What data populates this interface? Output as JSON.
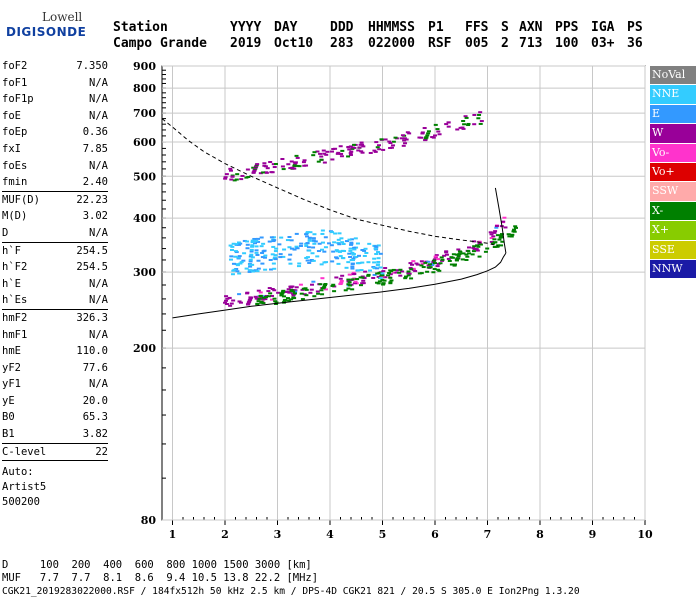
{
  "logo": {
    "line1": "Lowell",
    "line2": "DIGISONDE"
  },
  "header": {
    "row1": [
      {
        "text": "Station"
      },
      {
        "text": "YYYY"
      },
      {
        "text": "DAY"
      },
      {
        "text": "DDD"
      },
      {
        "text": "HHMMSS"
      },
      {
        "text": "P1"
      },
      {
        "text": "FFS"
      },
      {
        "text": "S"
      },
      {
        "text": "AXN"
      },
      {
        "text": "PPS"
      },
      {
        "text": "IGA"
      },
      {
        "text": "PS"
      }
    ],
    "row2": [
      {
        "text": "Campo Grande"
      },
      {
        "text": "2019"
      },
      {
        "text": "Oct10"
      },
      {
        "text": "283"
      },
      {
        "text": "022000"
      },
      {
        "text": "RSF"
      },
      {
        "text": "005"
      },
      {
        "text": "2"
      },
      {
        "text": "713"
      },
      {
        "text": "100"
      },
      {
        "text": "03+"
      },
      {
        "text": "36"
      }
    ]
  },
  "params": {
    "group1": [
      {
        "name": "foF2",
        "value": "7.350"
      },
      {
        "name": "foF1",
        "value": "N/A"
      },
      {
        "name": "foF1p",
        "value": "N/A"
      },
      {
        "name": "foE",
        "value": "N/A"
      },
      {
        "name": "foEp",
        "value": "0.36"
      },
      {
        "name": "fxI",
        "value": "7.85"
      },
      {
        "name": "foEs",
        "value": "N/A"
      },
      {
        "name": "fmin",
        "value": "2.40"
      }
    ],
    "group2": [
      {
        "name": "MUF(D)",
        "value": "22.23"
      },
      {
        "name": "M(D)",
        "value": "3.02"
      },
      {
        "name": "D",
        "value": "N/A"
      }
    ],
    "group3": [
      {
        "name": "h`F",
        "value": "254.5"
      },
      {
        "name": "h`F2",
        "value": "254.5"
      },
      {
        "name": "h`E",
        "value": "N/A"
      },
      {
        "name": "h`Es",
        "value": "N/A"
      }
    ],
    "group4": [
      {
        "name": "hmF2",
        "value": "326.3"
      },
      {
        "name": "hmF1",
        "value": "N/A"
      },
      {
        "name": "hmE",
        "value": "110.0"
      },
      {
        "name": "yF2",
        "value": "77.6"
      },
      {
        "name": "yF1",
        "value": "N/A"
      },
      {
        "name": "yE",
        "value": "20.0"
      },
      {
        "name": "B0",
        "value": "65.3"
      },
      {
        "name": "B1",
        "value": "3.82"
      }
    ],
    "group5": [
      {
        "name": "C-level",
        "value": "22"
      }
    ],
    "notes": [
      "Auto:",
      "Artist5",
      "500200"
    ]
  },
  "legend": [
    {
      "label": "NoVal",
      "color": "#808080"
    },
    {
      "label": "NNE",
      "color": "#33ccff"
    },
    {
      "label": "E",
      "color": "#3399ff"
    },
    {
      "label": "W",
      "color": "#990099"
    },
    {
      "label": "Vo-",
      "color": "#ff33cc"
    },
    {
      "label": "Vo+",
      "color": "#dd0000"
    },
    {
      "label": "SSW",
      "color": "#ffaaaa"
    },
    {
      "label": "X-",
      "color": "#008000"
    },
    {
      "label": "X+",
      "color": "#88cc00"
    },
    {
      "label": "SSE",
      "color": "#cccc00"
    },
    {
      "label": "NNW",
      "color": "#1a1aa6"
    }
  ],
  "chart_data": {
    "type": "scatter",
    "xlim": [
      0.8,
      10
    ],
    "ylim": [
      80,
      900
    ],
    "y_scale": "log",
    "x_ticks": [
      1,
      2,
      3,
      4,
      5,
      6,
      7,
      8,
      9,
      10
    ],
    "y_ticks": [
      80,
      200,
      300,
      400,
      500,
      600,
      700,
      800,
      900
    ],
    "grid": true,
    "legend_position": "right",
    "series": [
      {
        "name": "F2 trace (O)",
        "color": "#990099",
        "x": [
          2.0,
          2.5,
          3.0,
          3.5,
          4.0,
          4.5,
          5.0,
          5.5,
          6.0,
          6.5,
          6.8,
          7.0,
          7.2,
          7.35
        ],
        "y": [
          255,
          262,
          270,
          276,
          283,
          290,
          297,
          306,
          318,
          332,
          345,
          358,
          375,
          395
        ]
      },
      {
        "name": "F2 trace (X)",
        "color": "#008000",
        "x": [
          2.6,
          3.5,
          4.5,
          5.5,
          6.0,
          6.5,
          7.0,
          7.3,
          7.6
        ],
        "y": [
          258,
          268,
          283,
          298,
          310,
          325,
          342,
          360,
          385
        ]
      },
      {
        "name": "Multiple hop echo",
        "color": "#990099",
        "x": [
          2.0,
          2.5,
          3.0,
          3.5,
          4.0,
          4.5,
          5.0,
          5.5,
          6.0,
          6.5,
          6.9
        ],
        "y": [
          500,
          515,
          530,
          545,
          560,
          578,
          592,
          612,
          635,
          662,
          685
        ]
      },
      {
        "name": "Spread echoes",
        "color": "#33ccff",
        "x": [
          2.1,
          2.5,
          3.0,
          3.5,
          4.0,
          4.5,
          5.0
        ],
        "y": [
          320,
          330,
          335,
          340,
          345,
          330,
          318
        ]
      }
    ],
    "profile_curve": {
      "x": [
        1.0,
        1.5,
        2.0,
        2.5,
        3.0,
        3.5,
        4.0,
        4.5,
        5.0,
        5.5,
        6.0,
        6.5,
        6.8,
        7.0,
        7.15,
        7.25,
        7.3,
        7.35
      ],
      "y": [
        235,
        240,
        245,
        250,
        254,
        258,
        262,
        266,
        270,
        275,
        281,
        289,
        296,
        302,
        308,
        316,
        325,
        332
      ]
    },
    "profile_upper": {
      "x": [
        7.35,
        7.32,
        7.28,
        7.22,
        7.15
      ],
      "y": [
        332,
        350,
        380,
        420,
        470
      ]
    },
    "dashed_curve": {
      "x": [
        0.8,
        1.0,
        1.3,
        1.6,
        2.0,
        2.5,
        3.0,
        3.5,
        4.0,
        4.5,
        5.0,
        5.5,
        6.0,
        6.5,
        7.0,
        7.2
      ],
      "y": [
        680,
        650,
        605,
        570,
        535,
        500,
        470,
        442,
        418,
        398,
        385,
        373,
        363,
        356,
        350,
        345
      ]
    }
  },
  "footer": {
    "line1": "D     100  200  400  600  800 1000 1500 3000 [km]",
    "line2": "MUF   7.7  7.7  8.1  8.6  9.4 10.5 13.8 22.2 [MHz]",
    "line3": "CGK21_2019283022000.RSF / 184fx512h 50 kHz 2.5 km / DPS-4D CGK21 821 / 20.5 S 305.0 E Ion2Png 1.3.20"
  }
}
